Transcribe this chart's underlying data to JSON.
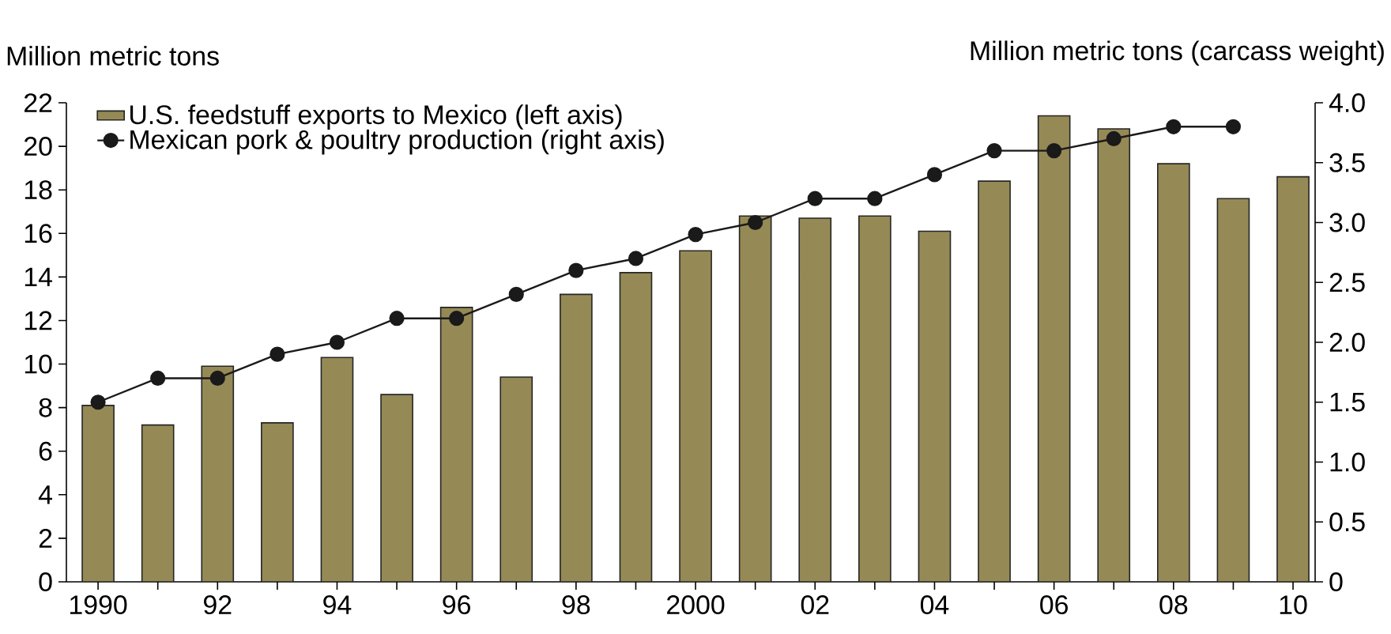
{
  "chart_data": {
    "type": "bar",
    "ylabel": "Million metric tons",
    "y2label": "Million metric tons (carcass weight)",
    "categories": [
      "1990",
      null,
      "92",
      null,
      "94",
      null,
      "96",
      null,
      "98",
      null,
      "2000",
      null,
      "02",
      null,
      "04",
      null,
      "06",
      null,
      "08",
      null,
      "10"
    ],
    "series": [
      {
        "name": "U.S. feedstuff exports to Mexico (left axis)",
        "color": "#958a55",
        "values": [
          8.1,
          7.2,
          9.9,
          7.3,
          10.3,
          8.6,
          12.6,
          9.4,
          13.2,
          14.2,
          15.2,
          16.8,
          16.7,
          16.8,
          16.1,
          18.4,
          21.4,
          20.8,
          19.2,
          17.6,
          18.6
        ]
      },
      {
        "name": "Mexican pork & poultry production (right axis)",
        "type": "line",
        "axis": "y2",
        "color": "#1a1a1a",
        "marker": "circle",
        "values": [
          1.5,
          1.7,
          1.7,
          1.9,
          2.0,
          2.2,
          2.2,
          2.4,
          2.6,
          2.7,
          2.9,
          3.0,
          3.2,
          3.2,
          3.4,
          3.6,
          3.6,
          3.7,
          3.8,
          3.8,
          null
        ]
      }
    ],
    "ylim": [
      0,
      22
    ],
    "yticks": [
      0,
      2,
      4,
      6,
      8,
      10,
      12,
      14,
      16,
      18,
      20,
      22
    ],
    "y2lim": [
      0,
      4
    ],
    "y2ticks": [
      0,
      0.5,
      {
        "value": 1,
        "label": "1.0"
      },
      1.5,
      {
        "value": 2,
        "label": "2.0"
      },
      2.5,
      {
        "value": 3,
        "label": "3.0"
      },
      3.5,
      {
        "value": 4,
        "label": "4.0"
      }
    ],
    "legend": "top left"
  }
}
